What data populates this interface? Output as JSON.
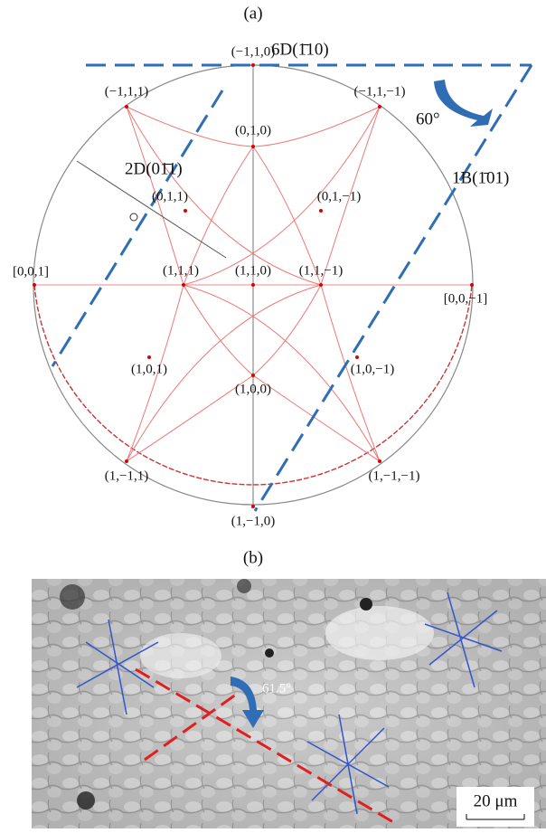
{
  "panel_a": {
    "label": "(a)",
    "poles": [
      "(−1,1,0)",
      "(−1,1,1)",
      "(−1,1,−1)",
      "(0,1,0)",
      "(0,1,1)",
      "(0,1,−1)",
      "[0,0,1]",
      "(1,1,1)",
      "(1,1,0)",
      "(1,1,−1)",
      "[0,0,−1]",
      "(1,0,1)",
      "(1,0,−1)",
      "(1,0,0)",
      "(1,−1,1)",
      "(1,−1,−1)",
      "(1,−1,0)"
    ],
    "annotations": [
      "6D(1̄10)",
      "1B(1̄01)",
      "2D(01̄1)",
      "60°"
    ]
  },
  "panel_b": {
    "label": "(b)",
    "angle": "61.5°",
    "scale_bar": "20 μm"
  }
}
